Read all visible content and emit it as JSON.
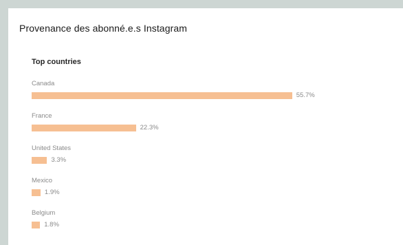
{
  "card": {
    "title": "Provenance des abonné.e.s Instagram"
  },
  "chart_data": {
    "type": "bar",
    "orientation": "horizontal",
    "title": "Top countries",
    "categories": [
      "Canada",
      "France",
      "United States",
      "Mexico",
      "Belgium"
    ],
    "values": [
      55.7,
      22.3,
      3.3,
      1.9,
      1.8
    ],
    "value_labels": [
      "55.7%",
      "22.3%",
      "3.3%",
      "1.9%",
      "1.8%"
    ],
    "unit": "%",
    "bar_color": "#f6bf92",
    "grid": false,
    "legend": "none"
  }
}
